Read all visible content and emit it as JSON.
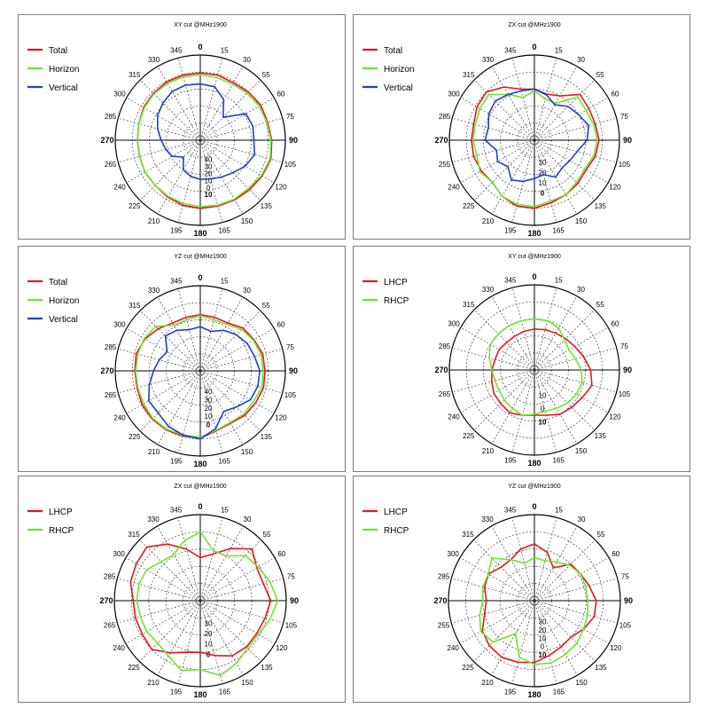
{
  "chart_data": [
    {
      "type": "polar-line",
      "title": "XY cut @MHz1900",
      "radial_ticks": [
        "40",
        "30",
        "20",
        "10",
        "0",
        "10"
      ],
      "angle_labels": [
        "0",
        "15",
        "30",
        "55",
        "60",
        "75",
        "90",
        "105",
        "120",
        "135",
        "150",
        "165",
        "180",
        "195",
        "210",
        "225",
        "240",
        "265",
        "270",
        "285",
        "300",
        "315",
        "330",
        "345"
      ],
      "series": [
        {
          "name": "Total",
          "color": "#e8141d",
          "r": [
            0.79,
            0.79,
            0.78,
            0.8,
            0.82,
            0.82,
            0.84,
            0.86,
            0.84,
            0.82,
            0.81,
            0.8,
            0.8,
            0.79,
            0.77,
            0.75,
            0.75,
            0.74,
            0.74,
            0.75,
            0.77,
            0.78,
            0.79,
            0.79
          ]
        },
        {
          "name": "Horizon",
          "color": "#6ee52a",
          "r": [
            0.77,
            0.76,
            0.76,
            0.78,
            0.8,
            0.81,
            0.83,
            0.85,
            0.83,
            0.8,
            0.8,
            0.79,
            0.78,
            0.77,
            0.76,
            0.75,
            0.75,
            0.74,
            0.74,
            0.75,
            0.76,
            0.77,
            0.77,
            0.77
          ]
        },
        {
          "name": "Vertical",
          "color": "#1c3fd1",
          "r": [
            0.66,
            0.65,
            0.55,
            0.38,
            0.62,
            0.64,
            0.63,
            0.66,
            0.61,
            0.54,
            0.5,
            0.47,
            0.46,
            0.44,
            0.4,
            0.28,
            0.38,
            0.42,
            0.46,
            0.52,
            0.58,
            0.62,
            0.66,
            0.67
          ]
        }
      ]
    },
    {
      "type": "polar-line",
      "title": "ZX cut @MHz1900",
      "radial_ticks": [
        "30",
        "20",
        "10",
        "0"
      ],
      "angle_labels": [
        "0",
        "15",
        "30",
        "55",
        "60",
        "75",
        "90",
        "105",
        "120",
        "135",
        "150",
        "165",
        "180",
        "195",
        "210",
        "225",
        "240",
        "255",
        "270",
        "285",
        "300",
        "315",
        "330",
        "345"
      ],
      "series": [
        {
          "name": "Total",
          "color": "#e8141d",
          "r": [
            0.6,
            0.56,
            0.6,
            0.76,
            0.74,
            0.74,
            0.76,
            0.74,
            0.7,
            0.72,
            0.74,
            0.76,
            0.8,
            0.8,
            0.76,
            0.7,
            0.72,
            0.74,
            0.74,
            0.74,
            0.78,
            0.8,
            0.72,
            0.62
          ]
        },
        {
          "name": "Horizon",
          "color": "#6ee52a",
          "r": [
            0.58,
            0.5,
            0.5,
            0.72,
            0.7,
            0.72,
            0.74,
            0.72,
            0.68,
            0.7,
            0.74,
            0.74,
            0.78,
            0.78,
            0.76,
            0.7,
            0.74,
            0.7,
            0.72,
            0.72,
            0.74,
            0.76,
            0.62,
            0.52
          ]
        },
        {
          "name": "Vertical",
          "color": "#1c3fd1",
          "r": [
            0.6,
            0.55,
            0.48,
            0.56,
            0.6,
            0.66,
            0.62,
            0.52,
            0.48,
            0.46,
            0.5,
            0.42,
            0.45,
            0.5,
            0.54,
            0.44,
            0.5,
            0.46,
            0.58,
            0.56,
            0.62,
            0.65,
            0.62,
            0.6
          ]
        }
      ]
    },
    {
      "type": "polar-line",
      "title": "YZ cut @MHz1900",
      "radial_ticks": [
        "40",
        "30",
        "20",
        "10",
        "0"
      ],
      "angle_labels": [
        "0",
        "15",
        "30",
        "55",
        "60",
        "75",
        "90",
        "105",
        "120",
        "135",
        "150",
        "165",
        "180",
        "195",
        "210",
        "225",
        "240",
        "265",
        "270",
        "285",
        "300",
        "315",
        "330",
        "345"
      ],
      "series": [
        {
          "name": "Total",
          "color": "#e8141d",
          "r": [
            0.66,
            0.65,
            0.65,
            0.71,
            0.73,
            0.76,
            0.76,
            0.77,
            0.75,
            0.74,
            0.71,
            0.73,
            0.79,
            0.79,
            0.8,
            0.8,
            0.79,
            0.77,
            0.77,
            0.78,
            0.75,
            0.7,
            0.65,
            0.65
          ]
        },
        {
          "name": "Horizon",
          "color": "#6ee52a",
          "r": [
            0.65,
            0.62,
            0.63,
            0.69,
            0.72,
            0.74,
            0.74,
            0.75,
            0.72,
            0.72,
            0.7,
            0.72,
            0.78,
            0.78,
            0.79,
            0.79,
            0.77,
            0.76,
            0.76,
            0.76,
            0.76,
            0.74,
            0.62,
            0.62
          ]
        },
        {
          "name": "Vertical",
          "color": "#1c3fd1",
          "r": [
            0.52,
            0.48,
            0.55,
            0.6,
            0.64,
            0.66,
            0.7,
            0.7,
            0.68,
            0.6,
            0.55,
            0.7,
            0.8,
            0.78,
            0.75,
            0.7,
            0.7,
            0.62,
            0.55,
            0.5,
            0.45,
            0.58,
            0.55,
            0.5
          ]
        }
      ]
    },
    {
      "type": "polar-line",
      "title": "XY cut @MHz1900",
      "radial_ticks": [
        "10",
        "0",
        "10"
      ],
      "angle_labels": [
        "0",
        "15",
        "30",
        "55",
        "60",
        "75",
        "90",
        "105",
        "120",
        "135",
        "150",
        "165",
        "180",
        "195",
        "210",
        "225",
        "240",
        "265",
        "270",
        "285",
        "300",
        "315",
        "330",
        "345"
      ],
      "series": [
        {
          "name": "LHCP",
          "color": "#e8141d",
          "r": [
            0.48,
            0.49,
            0.5,
            0.52,
            0.55,
            0.6,
            0.66,
            0.7,
            0.65,
            0.62,
            0.6,
            0.55,
            0.53,
            0.55,
            0.58,
            0.56,
            0.55,
            0.52,
            0.5,
            0.48,
            0.48,
            0.46,
            0.46,
            0.47
          ]
        },
        {
          "name": "RHCP",
          "color": "#6ee52a",
          "r": [
            0.6,
            0.6,
            0.57,
            0.5,
            0.47,
            0.5,
            0.55,
            0.58,
            0.57,
            0.55,
            0.52,
            0.5,
            0.52,
            0.55,
            0.52,
            0.5,
            0.48,
            0.48,
            0.5,
            0.55,
            0.6,
            0.6,
            0.6,
            0.6
          ]
        }
      ]
    },
    {
      "type": "polar-line",
      "title": "ZX cut @MHz1900",
      "radial_ticks": [
        "30",
        "20",
        "10",
        "0"
      ],
      "angle_labels": [
        "0",
        "15",
        "30",
        "55",
        "60",
        "75",
        "90",
        "105",
        "120",
        "135",
        "150",
        "165",
        "180",
        "195",
        "210",
        "225",
        "240",
        "265",
        "270",
        "285",
        "300",
        "315",
        "330",
        "345"
      ],
      "series": [
        {
          "name": "LHCP",
          "color": "#e8141d",
          "r": [
            0.5,
            0.56,
            0.7,
            0.85,
            0.76,
            0.76,
            0.82,
            0.78,
            0.76,
            0.76,
            0.74,
            0.66,
            0.6,
            0.62,
            0.7,
            0.8,
            0.78,
            0.78,
            0.78,
            0.84,
            0.86,
            0.88,
            0.76,
            0.62
          ]
        },
        {
          "name": "RHCP",
          "color": "#6ee52a",
          "r": [
            0.8,
            0.6,
            0.6,
            0.74,
            0.78,
            0.84,
            0.9,
            0.84,
            0.78,
            0.78,
            0.84,
            0.9,
            0.8,
            0.84,
            0.74,
            0.7,
            0.72,
            0.72,
            0.74,
            0.74,
            0.72,
            0.64,
            0.62,
            0.72
          ]
        }
      ]
    },
    {
      "type": "polar-line",
      "title": "YZ cut @MHz1900",
      "radial_ticks": [
        "30",
        "20",
        "10",
        "0",
        "10"
      ],
      "angle_labels": [
        "0",
        "15",
        "30",
        "55",
        "60",
        "75",
        "90",
        "105",
        "120",
        "135",
        "150",
        "165",
        "180",
        "195",
        "210",
        "225",
        "240",
        "255",
        "270",
        "285",
        "300",
        "315",
        "330",
        "345"
      ],
      "series": [
        {
          "name": "LHCP",
          "color": "#e8141d",
          "r": [
            0.66,
            0.58,
            0.44,
            0.6,
            0.62,
            0.66,
            0.72,
            0.72,
            0.66,
            0.6,
            0.62,
            0.66,
            0.72,
            0.74,
            0.76,
            0.74,
            0.7,
            0.6,
            0.56,
            0.6,
            0.62,
            0.55,
            0.55,
            0.62
          ]
        },
        {
          "name": "RHCP",
          "color": "#6ee52a",
          "r": [
            0.5,
            0.48,
            0.52,
            0.58,
            0.62,
            0.62,
            0.62,
            0.64,
            0.66,
            0.7,
            0.72,
            0.75,
            0.74,
            0.68,
            0.44,
            0.68,
            0.72,
            0.66,
            0.6,
            0.62,
            0.62,
            0.7,
            0.55,
            0.45
          ]
        }
      ]
    }
  ]
}
